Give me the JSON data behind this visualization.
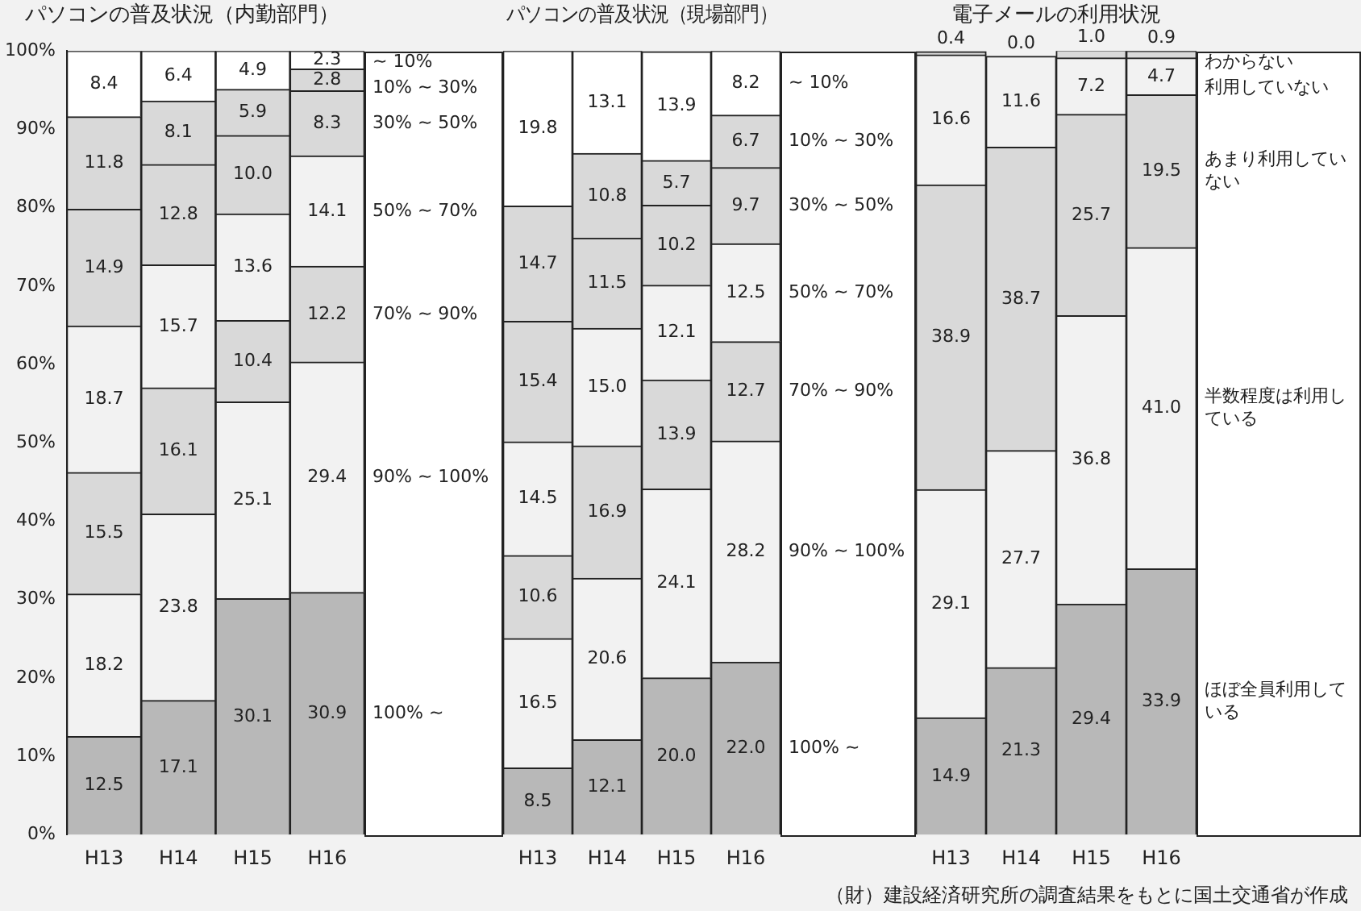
{
  "chart_data": [
    {
      "type": "bar",
      "stacked": true,
      "title": "パソコンの普及状況（内勤部門）",
      "categories": [
        "H13",
        "H14",
        "H15",
        "H16"
      ],
      "ylim": [
        0,
        100
      ],
      "yticks": [
        {
          "value": 0,
          "label": "0%"
        },
        {
          "value": 10,
          "label": "10%"
        },
        {
          "value": 20,
          "label": "20%"
        },
        {
          "value": 30,
          "label": "30%"
        },
        {
          "value": 40,
          "label": "40%"
        },
        {
          "value": 50,
          "label": "50%"
        },
        {
          "value": 60,
          "label": "60%"
        },
        {
          "value": 70,
          "label": "70%"
        },
        {
          "value": 80,
          "label": "80%"
        },
        {
          "value": 90,
          "label": "90%"
        },
        {
          "value": 100,
          "label": "100%"
        }
      ],
      "grid": false,
      "legend": false,
      "series": [
        {
          "name": "100% ~",
          "color": "#b8b8b8",
          "values": [
            12.5,
            17.1,
            30.1,
            30.9
          ],
          "value_labels": [
            "12.5",
            "17.1",
            "30.1",
            "30.9"
          ]
        },
        {
          "name": "90% ~ 100%",
          "color": "#f2f2f2",
          "values": [
            18.2,
            23.8,
            25.1,
            29.4
          ],
          "value_labels": [
            "18.2",
            "23.8",
            "25.1",
            "29.4"
          ]
        },
        {
          "name": "70% ~ 90%",
          "color": "#d9d9d9",
          "values": [
            15.5,
            16.1,
            10.4,
            12.2
          ],
          "value_labels": [
            "15.5",
            "16.1",
            "10.4",
            "12.2"
          ]
        },
        {
          "name": "50% ~ 70%",
          "color": "#f2f2f2",
          "values": [
            18.7,
            15.7,
            13.6,
            14.1
          ],
          "value_labels": [
            "18.7",
            "15.7",
            "13.6",
            "14.1"
          ]
        },
        {
          "name": "30% ~ 50%",
          "color": "#d9d9d9",
          "values": [
            14.9,
            12.8,
            10.0,
            8.3
          ],
          "value_labels": [
            "14.9",
            "12.8",
            "10.0",
            "8.3"
          ]
        },
        {
          "name": "10% ~ 30%",
          "color": "#d9d9d9",
          "values": [
            11.8,
            8.1,
            5.9,
            2.8
          ],
          "value_labels": [
            "11.8",
            "8.1",
            "5.9",
            "2.8"
          ]
        },
        {
          "name": "~ 10%",
          "color": "#ffffff",
          "values": [
            8.4,
            6.4,
            4.9,
            2.3
          ],
          "value_labels": [
            "8.4",
            "6.4",
            "4.9",
            "2.3"
          ]
        }
      ]
    },
    {
      "type": "bar",
      "stacked": true,
      "title": "パソコンの普及状況（現場部門）",
      "categories": [
        "H13",
        "H14",
        "H15",
        "H16"
      ],
      "ylim": [
        0,
        100
      ],
      "tick_labels": "x",
      "grid": false,
      "legend": false,
      "series": [
        {
          "name": "100% ~",
          "color": "#b8b8b8",
          "values": [
            8.5,
            12.1,
            20.0,
            22.0
          ],
          "value_labels": [
            "8.5",
            "12.1",
            "20.0",
            "22.0"
          ]
        },
        {
          "name": "90% ~ 100%",
          "color": "#f2f2f2",
          "values": [
            16.5,
            20.6,
            24.1,
            28.2
          ],
          "value_labels": [
            "16.5",
            "20.6",
            "24.1",
            "28.2"
          ]
        },
        {
          "name": "70% ~ 90%",
          "color": "#d9d9d9",
          "values": [
            10.6,
            16.9,
            13.9,
            12.7
          ],
          "value_labels": [
            "10.6",
            "16.9",
            "13.9",
            "12.7"
          ]
        },
        {
          "name": "50% ~ 70%",
          "color": "#f2f2f2",
          "values": [
            14.5,
            15.0,
            12.1,
            12.5
          ],
          "value_labels": [
            "14.5",
            "15.0",
            "12.1",
            "12.5"
          ]
        },
        {
          "name": "30% ~ 50%",
          "color": "#d9d9d9",
          "values": [
            15.4,
            11.5,
            10.2,
            9.7
          ],
          "value_labels": [
            "15.4",
            "11.5",
            "10.2",
            "9.7"
          ]
        },
        {
          "name": "10% ~ 30%",
          "color": "#d9d9d9",
          "values": [
            14.7,
            10.8,
            5.7,
            6.7
          ],
          "value_labels": [
            "14.7",
            "10.8",
            "5.7",
            "6.7"
          ]
        },
        {
          "name": "~ 10%",
          "color": "#ffffff",
          "values": [
            19.8,
            13.1,
            13.9,
            8.2
          ],
          "value_labels": [
            "19.8",
            "13.1",
            "13.9",
            "8.2"
          ]
        }
      ]
    },
    {
      "type": "bar",
      "stacked": true,
      "title": "電子メールの利用状況",
      "categories": [
        "H13",
        "H14",
        "H15",
        "H16"
      ],
      "ylim": [
        0,
        100
      ],
      "tick_labels": "x",
      "grid": false,
      "legend": false,
      "annotations": [
        "（財）建設経済研究所の調査結果をもとに国土交通省が作成"
      ],
      "series": [
        {
          "name": "ほぼ全員利用している",
          "color": "#b8b8b8",
          "values": [
            14.9,
            21.3,
            29.4,
            33.9
          ],
          "value_labels": [
            "14.9",
            "21.3",
            "29.4",
            "33.9"
          ]
        },
        {
          "name": "半数程度は利用している",
          "color": "#f2f2f2",
          "values": [
            29.1,
            27.7,
            36.8,
            41.0
          ],
          "value_labels": [
            "29.1",
            "27.7",
            "36.8",
            "41.0"
          ]
        },
        {
          "name": "あまり利用していない",
          "color": "#d9d9d9",
          "values": [
            38.9,
            38.7,
            25.7,
            19.5
          ],
          "value_labels": [
            "38.9",
            "38.7",
            "25.7",
            "19.5"
          ]
        },
        {
          "name": "利用していない",
          "color": "#f2f2f2",
          "values": [
            16.6,
            11.6,
            7.2,
            4.7
          ],
          "value_labels": [
            "16.6",
            "11.6",
            "7.2",
            "4.7"
          ]
        },
        {
          "name": "わからない",
          "color": "#d9d9d9",
          "values": [
            0.4,
            0.0,
            1.0,
            0.9
          ],
          "value_labels": [
            "0.4",
            "0.0",
            "1.0",
            "0.9"
          ]
        }
      ]
    }
  ]
}
